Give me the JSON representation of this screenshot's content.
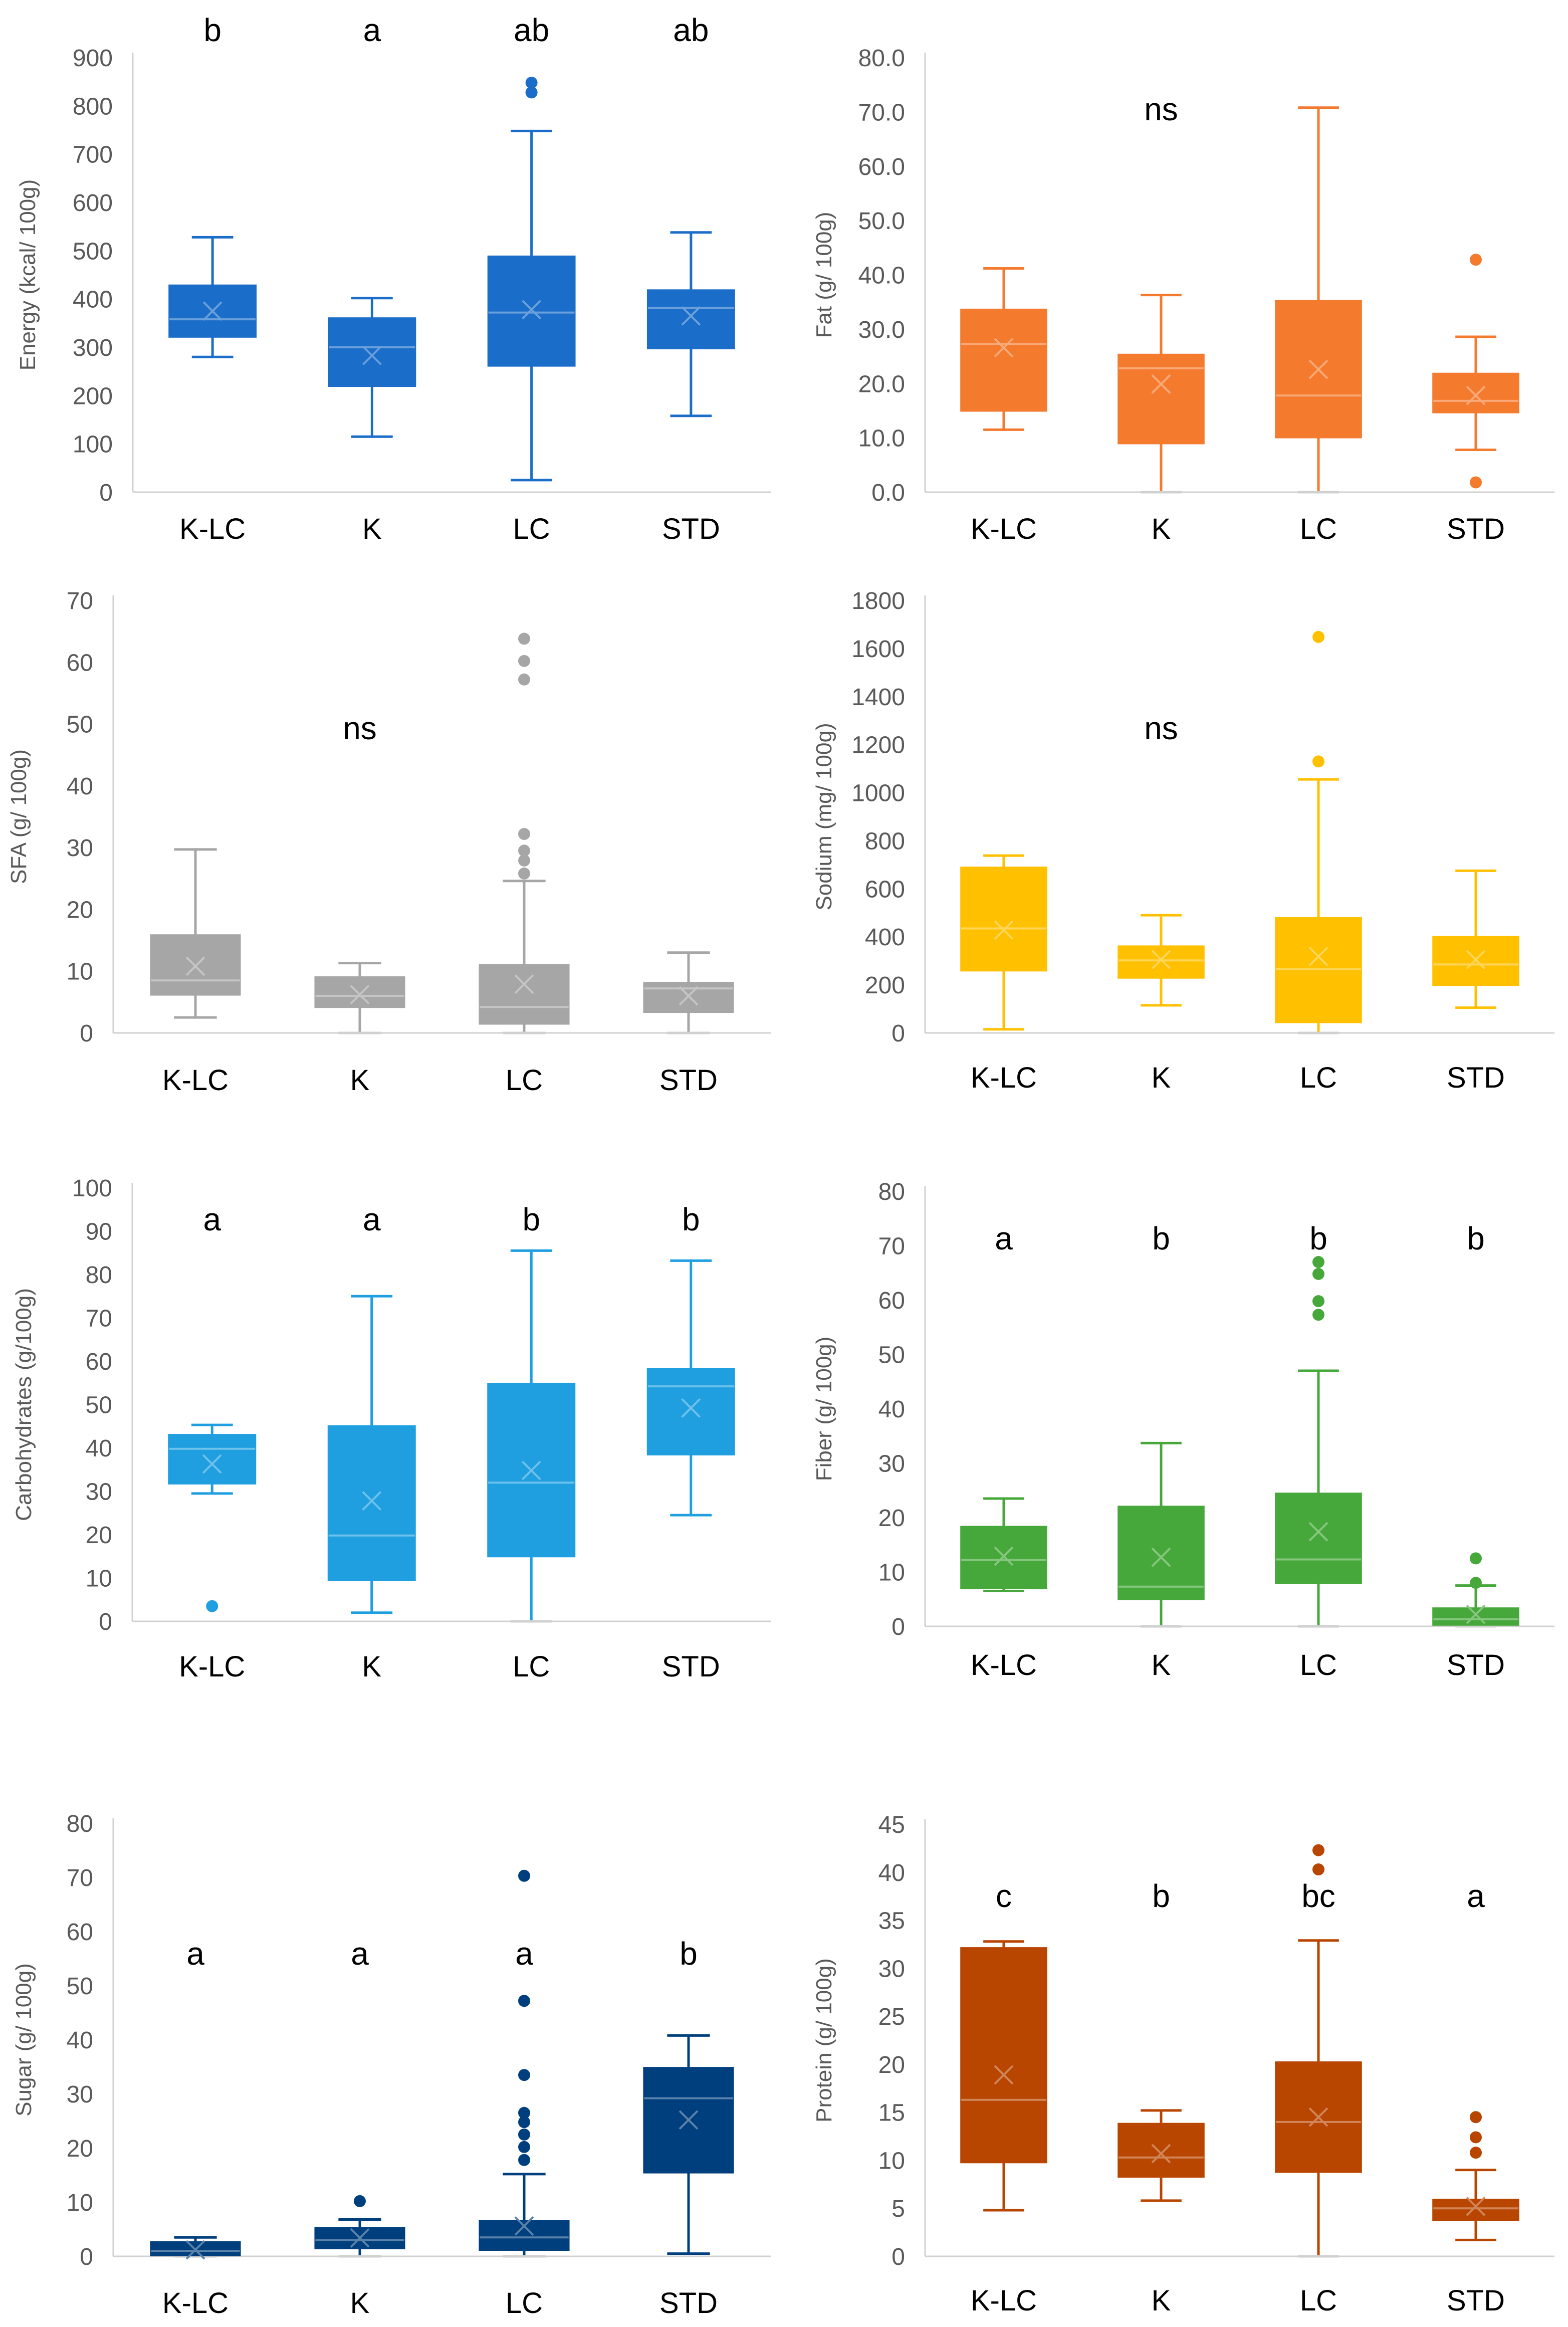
{
  "chart_data": [
    {
      "type": "box",
      "ylabel": "Energy (kcal/ 100g)",
      "ylim": [
        0,
        900
      ],
      "ticks": [
        "0",
        "100",
        "200",
        "300",
        "400",
        "500",
        "600",
        "700",
        "800",
        "900"
      ],
      "categories": [
        "K-LC",
        "K",
        "LC",
        "STD"
      ],
      "color": "#1a6dc8",
      "annotations": [
        "b",
        "a",
        "ab",
        "ab"
      ],
      "boxes": [
        {
          "min": 280,
          "q1": 322,
          "median": 358,
          "q3": 428,
          "max": 528,
          "mean": 375,
          "outliers": []
        },
        {
          "min": 115,
          "q1": 220,
          "median": 300,
          "q3": 360,
          "max": 402,
          "mean": 283,
          "outliers": []
        },
        {
          "min": 25,
          "q1": 262,
          "median": 372,
          "q3": 488,
          "max": 748,
          "mean": 378,
          "outliers": [
            828,
            848
          ]
        },
        {
          "min": 158,
          "q1": 298,
          "median": 382,
          "q3": 418,
          "max": 538,
          "mean": 365,
          "outliers": []
        }
      ]
    },
    {
      "type": "box",
      "ylabel": "Fat (g/ 100g)",
      "ylim": [
        0,
        80
      ],
      "ticks": [
        "0.0",
        "10.0",
        "20.0",
        "30.0",
        "40.0",
        "50.0",
        "60.0",
        "70.0",
        "80.0"
      ],
      "categories": [
        "K-LC",
        "K",
        "LC",
        "STD"
      ],
      "color": "#f47a2e",
      "annotations": [
        "",
        "ns",
        "",
        ""
      ],
      "boxes": [
        {
          "min": 11.5,
          "q1": 15,
          "median": 27.3,
          "q3": 33.6,
          "max": 41.2,
          "mean": 26.6,
          "outliers": []
        },
        {
          "min": 0,
          "q1": 9,
          "median": 22.8,
          "q3": 25.3,
          "max": 36.3,
          "mean": 19.9,
          "outliers": []
        },
        {
          "min": 0,
          "q1": 10.1,
          "median": 17.8,
          "q3": 35.2,
          "max": 70.8,
          "mean": 22.6,
          "outliers": []
        },
        {
          "min": 7.8,
          "q1": 14.7,
          "median": 16.8,
          "q3": 21.8,
          "max": 28.6,
          "mean": 17.8,
          "outliers": [
            1.8,
            42.8
          ]
        }
      ]
    },
    {
      "type": "box",
      "ylabel": "SFA (g/ 100g)",
      "ylim": [
        0,
        70
      ],
      "ticks": [
        "0",
        "10",
        "20",
        "30",
        "40",
        "50",
        "60",
        "70"
      ],
      "categories": [
        "K-LC",
        "K",
        "LC",
        "STD"
      ],
      "color": "#a6a6a6",
      "annotations": [
        "",
        "ns",
        "",
        ""
      ],
      "boxes": [
        {
          "min": 2.5,
          "q1": 6.2,
          "median": 8.5,
          "q3": 15.8,
          "max": 29.7,
          "mean": 10.8,
          "outliers": []
        },
        {
          "min": 0,
          "q1": 4.2,
          "median": 6,
          "q3": 9,
          "max": 11.3,
          "mean": 6.2,
          "outliers": []
        },
        {
          "min": 0,
          "q1": 1.5,
          "median": 4.2,
          "q3": 11,
          "max": 24.6,
          "mean": 7.9,
          "outliers": [
            25.8,
            27.9,
            29.5,
            32.2,
            57.2,
            60.2,
            63.8
          ]
        },
        {
          "min": 0,
          "q1": 3.4,
          "median": 7.2,
          "q3": 8.1,
          "max": 13,
          "mean": 6,
          "outliers": []
        }
      ]
    },
    {
      "type": "box",
      "ylabel": "Sodium (mg/ 100g)",
      "ylim": [
        0,
        1800
      ],
      "ticks": [
        "0",
        "200",
        "400",
        "600",
        "800",
        "1000",
        "1200",
        "1400",
        "1600",
        "1800"
      ],
      "categories": [
        "K-LC",
        "K",
        "LC",
        "STD"
      ],
      "color": "#ffc000",
      "annotations": [
        "",
        "ns",
        "",
        ""
      ],
      "boxes": [
        {
          "min": 15,
          "q1": 260,
          "median": 435,
          "q3": 688,
          "max": 738,
          "mean": 428,
          "outliers": []
        },
        {
          "min": 115,
          "q1": 230,
          "median": 302,
          "q3": 360,
          "max": 490,
          "mean": 305,
          "outliers": []
        },
        {
          "min": 0,
          "q1": 45,
          "median": 265,
          "q3": 478,
          "max": 1055,
          "mean": 318,
          "outliers": [
            1130,
            1648
          ]
        },
        {
          "min": 105,
          "q1": 200,
          "median": 285,
          "q3": 400,
          "max": 675,
          "mean": 305,
          "outliers": []
        }
      ]
    },
    {
      "type": "box",
      "ylabel": "Carbohydrates (g/100g)",
      "ylim": [
        0,
        100
      ],
      "ticks": [
        "0",
        "10",
        "20",
        "30",
        "40",
        "50",
        "60",
        "70",
        "80",
        "90",
        "100"
      ],
      "categories": [
        "K-LC",
        "K",
        "LC",
        "STD"
      ],
      "color": "#1f9fe0",
      "annotations": [
        "a",
        "a",
        "b",
        "b"
      ],
      "boxes": [
        {
          "min": 29.5,
          "q1": 31.8,
          "median": 39.8,
          "q3": 43,
          "max": 45.3,
          "mean": 36.3,
          "outliers": [
            3.5
          ]
        },
        {
          "min": 2,
          "q1": 9.5,
          "median": 19.8,
          "q3": 45,
          "max": 75,
          "mean": 27.8,
          "outliers": []
        },
        {
          "min": 0,
          "q1": 15,
          "median": 32,
          "q3": 54.8,
          "max": 85.5,
          "mean": 34.8,
          "outliers": []
        },
        {
          "min": 24.5,
          "q1": 38.5,
          "median": 54.2,
          "q3": 58.2,
          "max": 83.2,
          "mean": 49.2,
          "outliers": []
        }
      ]
    },
    {
      "type": "box",
      "ylabel": "Fiber (g/ 100g)",
      "ylim": [
        0,
        80
      ],
      "ticks": [
        "0",
        "10",
        "20",
        "30",
        "40",
        "50",
        "60",
        "70",
        "80"
      ],
      "categories": [
        "K-LC",
        "K",
        "LC",
        "STD"
      ],
      "color": "#46a83a",
      "annotations": [
        "a",
        "b",
        "b",
        "b"
      ],
      "boxes": [
        {
          "min": 6.5,
          "q1": 7,
          "median": 12.2,
          "q3": 18.3,
          "max": 23.5,
          "mean": 12.9,
          "outliers": []
        },
        {
          "min": 0,
          "q1": 5,
          "median": 7.3,
          "q3": 22,
          "max": 33.7,
          "mean": 12.7,
          "outliers": []
        },
        {
          "min": 0,
          "q1": 8,
          "median": 12.3,
          "q3": 24.4,
          "max": 47,
          "mean": 17.4,
          "outliers": [
            57.3,
            59.8,
            64.8,
            67
          ]
        },
        {
          "min": 0,
          "q1": 0.3,
          "median": 1.3,
          "q3": 3.3,
          "max": 7.5,
          "mean": 2.2,
          "outliers": [
            8,
            12.5
          ]
        }
      ]
    },
    {
      "type": "box",
      "ylabel": "Sugar (g/ 100g)",
      "ylim": [
        0,
        80
      ],
      "ticks": [
        "0",
        "10",
        "20",
        "30",
        "40",
        "50",
        "60",
        "70",
        "80"
      ],
      "categories": [
        "K-LC",
        "K",
        "LC",
        "STD"
      ],
      "color": "#003f7d",
      "annotations": [
        "a",
        "a",
        "a",
        "b"
      ],
      "boxes": [
        {
          "min": 0,
          "q1": 0.2,
          "median": 1,
          "q3": 2.6,
          "max": 3.5,
          "mean": 1.2,
          "outliers": []
        },
        {
          "min": 0,
          "q1": 1.5,
          "median": 3,
          "q3": 5.2,
          "max": 6.8,
          "mean": 3.4,
          "outliers": [
            10.2
          ]
        },
        {
          "min": 0,
          "q1": 1.2,
          "median": 3.5,
          "q3": 6.5,
          "max": 15.2,
          "mean": 5.6,
          "outliers": [
            17.8,
            20.2,
            22.5,
            24.8,
            26.5,
            33.5,
            47.2,
            70.3
          ]
        },
        {
          "min": 0.5,
          "q1": 15.5,
          "median": 29.2,
          "q3": 34.8,
          "max": 40.8,
          "mean": 25.2,
          "outliers": []
        }
      ]
    },
    {
      "type": "box",
      "ylabel": "Protein (g/ 100g)",
      "ylim": [
        0,
        45
      ],
      "ticks": [
        "0",
        "5",
        "10",
        "15",
        "20",
        "25",
        "30",
        "35",
        "40",
        "45"
      ],
      "categories": [
        "K-LC",
        "K",
        "LC",
        "STD"
      ],
      "color": "#b84500",
      "annotations": [
        "c",
        "b",
        "bc",
        "a"
      ],
      "boxes": [
        {
          "min": 4.8,
          "q1": 9.8,
          "median": 16.3,
          "q3": 32.1,
          "max": 32.8,
          "mean": 18.9,
          "outliers": []
        },
        {
          "min": 5.8,
          "q1": 8.3,
          "median": 10.3,
          "q3": 13.8,
          "max": 15.2,
          "mean": 10.7,
          "outliers": []
        },
        {
          "min": 0,
          "q1": 8.8,
          "median": 14,
          "q3": 20.2,
          "max": 32.9,
          "mean": 14.5,
          "outliers": [
            40.3,
            42.3
          ]
        },
        {
          "min": 1.7,
          "q1": 3.8,
          "median": 5,
          "q3": 5.9,
          "max": 9,
          "mean": 5.2,
          "outliers": [
            10.8,
            12.4,
            14.5
          ]
        }
      ]
    }
  ]
}
